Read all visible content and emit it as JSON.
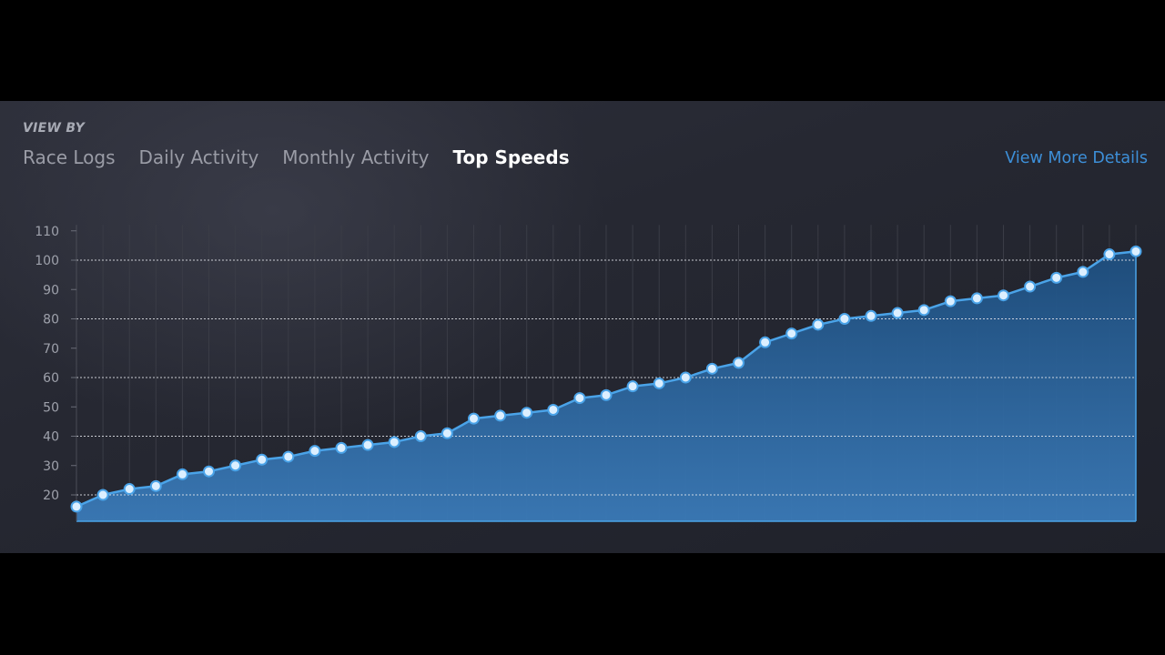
{
  "header": {
    "view_by_label": "VIEW BY",
    "tabs": [
      {
        "label": "Race Logs",
        "active": false
      },
      {
        "label": "Daily Activity",
        "active": false
      },
      {
        "label": "Monthly Activity",
        "active": false
      },
      {
        "label": "Top Speeds",
        "active": true
      }
    ],
    "details_link": "View More Details"
  },
  "colors": {
    "accent": "#3d8fd8",
    "line": "#4aa3e8",
    "area_top": "#1e4e7e",
    "area_bottom": "#3a7ab8",
    "point_fill": "#dcefff"
  },
  "chart_data": {
    "type": "area",
    "ylim": [
      12,
      112
    ],
    "yticks": [
      20,
      30,
      40,
      50,
      60,
      70,
      80,
      90,
      100,
      110
    ],
    "dashed_gridlines": [
      20,
      40,
      60,
      80,
      100
    ],
    "vertical_grid": true,
    "x": [
      1,
      2,
      3,
      4,
      5,
      6,
      7,
      8,
      9,
      10,
      11,
      12,
      13,
      14,
      15,
      16,
      17,
      18,
      19,
      20,
      21,
      22,
      23,
      24,
      25,
      26,
      27,
      28,
      29,
      30,
      31,
      32,
      33,
      34,
      35,
      36,
      37,
      38,
      39,
      40,
      41
    ],
    "values": [
      16,
      20,
      22,
      23,
      27,
      28,
      30,
      32,
      33,
      35,
      36,
      37,
      38,
      40,
      41,
      46,
      47,
      48,
      49,
      53,
      54,
      57,
      58,
      60,
      63,
      65,
      72,
      75,
      78,
      80,
      81,
      82,
      83,
      86,
      87,
      88,
      91,
      94,
      96,
      102,
      103
    ]
  }
}
